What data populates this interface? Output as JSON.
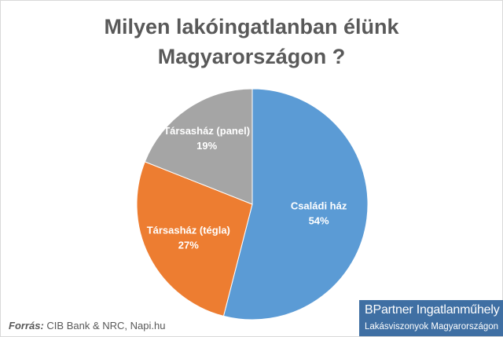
{
  "title": {
    "line1": "Milyen lakóingatlanban élünk",
    "line2": "Magyarországon ?"
  },
  "source": {
    "label": "Forrás:",
    "text": "CIB Bank & NRC, Napi.hu"
  },
  "brand": {
    "name": "BPartner Ingatlanműhely",
    "tagline": "Lakásviszonyok Magyarországon"
  },
  "chart_data": {
    "type": "pie",
    "title": "Milyen lakóingatlanban élünk Magyarországon ?",
    "categories": [
      "Családi ház",
      "Társasház (tégla)",
      "Társasház (panel)"
    ],
    "values": [
      54,
      27,
      19
    ],
    "labels": [
      "54%",
      "27%",
      "19%"
    ],
    "colors": [
      "#5b9bd5",
      "#ed7d31",
      "#a5a5a5"
    ],
    "start": "top",
    "direction": "clockwise",
    "legend": "none"
  }
}
